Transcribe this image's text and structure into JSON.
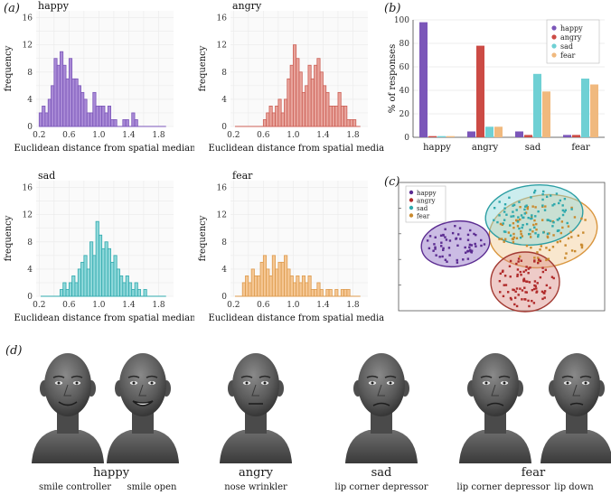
{
  "figure": {
    "panel_a_label": "(a)",
    "panel_b_label": "(b)",
    "panel_c_label": "(c)",
    "panel_d_label": "(d)"
  },
  "histograms": [
    {
      "id": "happy",
      "title": "happy",
      "color": "#a98ad6",
      "stroke": "#7b56b9",
      "ylabel": "frequency",
      "xlabel": "Euclidean distance from spatial median",
      "yticks": [
        "0",
        "4",
        "8",
        "12",
        "16"
      ],
      "xticks": [
        "0.2",
        "0.6",
        "1.0",
        "1.4",
        "1.8"
      ],
      "ymax": 17,
      "xmin": 0.16,
      "xmax": 2.0,
      "bin_start": 0.2,
      "bin_width": 0.04,
      "counts": [
        2,
        3,
        2,
        4,
        6,
        10,
        9,
        11,
        9,
        7,
        10,
        7,
        7,
        6,
        5,
        4,
        2,
        2,
        5,
        3,
        3,
        3,
        2,
        3,
        1,
        1,
        0,
        0,
        1,
        1,
        0,
        2,
        1,
        0,
        0,
        0,
        0
      ]
    },
    {
      "id": "angry",
      "title": "angry",
      "color": "#e8a49c",
      "stroke": "#cc5f55",
      "ylabel": "frequency",
      "xlabel": "Euclidean distance from spatial median",
      "yticks": [
        "0",
        "4",
        "8",
        "12",
        "16"
      ],
      "xticks": [
        "0.2",
        "0.6",
        "1.0",
        "1.4",
        "1.8"
      ],
      "ymax": 17,
      "xmin": 0.16,
      "xmax": 2.0,
      "bin_start": 0.6,
      "bin_width": 0.04,
      "counts": [
        1,
        2,
        3,
        2,
        3,
        4,
        2,
        4,
        7,
        9,
        12,
        10,
        8,
        5,
        6,
        9,
        7,
        9,
        10,
        8,
        6,
        5,
        3,
        3,
        3,
        5,
        3,
        3,
        1,
        1,
        1,
        0
      ]
    },
    {
      "id": "sad",
      "title": "sad",
      "color": "#8fd8da",
      "stroke": "#2fa9ad",
      "ylabel": "frequency",
      "xlabel": "Euclidean distance from spatial median",
      "yticks": [
        "0",
        "4",
        "8",
        "12",
        "16"
      ],
      "xticks": [
        "0.2",
        "0.6",
        "1.0",
        "1.4",
        "1.8"
      ],
      "ymax": 17,
      "xmin": 0.16,
      "xmax": 2.0,
      "bin_start": 0.48,
      "bin_width": 0.04,
      "counts": [
        1,
        2,
        1,
        2,
        3,
        2,
        4,
        5,
        6,
        4,
        8,
        6,
        11,
        9,
        7,
        8,
        7,
        5,
        6,
        4,
        3,
        2,
        3,
        2,
        1,
        2,
        1,
        0,
        1,
        0
      ]
    },
    {
      "id": "fear",
      "title": "fear",
      "color": "#f5c794",
      "stroke": "#dd9a4c",
      "ylabel": "frequency",
      "xlabel": "Euclidean distance from spatial median",
      "yticks": [
        "0",
        "4",
        "8",
        "12",
        "16"
      ],
      "xticks": [
        "0.2",
        "0.6",
        "1.0",
        "1.4",
        "1.8"
      ],
      "ymax": 17,
      "xmin": 0.16,
      "xmax": 2.0,
      "bin_start": 0.32,
      "bin_width": 0.04,
      "counts": [
        2,
        3,
        2,
        4,
        3,
        3,
        5,
        6,
        4,
        3,
        6,
        4,
        5,
        5,
        6,
        4,
        3,
        2,
        3,
        2,
        3,
        2,
        3,
        1,
        1,
        2,
        1,
        0,
        1,
        1,
        0,
        1,
        0,
        1,
        1,
        1
      ]
    }
  ],
  "chart_data": {
    "type": "bar",
    "title": "",
    "ylabel": "% of responses",
    "xlabel": "",
    "ylim": [
      0,
      100
    ],
    "yticks": [
      "0",
      "20",
      "40",
      "60",
      "80",
      "100"
    ],
    "categories": [
      "happy",
      "angry",
      "sad",
      "fear"
    ],
    "series": [
      {
        "name": "happy",
        "color": "#7b56b9",
        "values": [
          98,
          5,
          5,
          2
        ]
      },
      {
        "name": "angry",
        "color": "#cc4b45",
        "values": [
          1,
          78,
          2,
          2
        ]
      },
      {
        "name": "sad",
        "color": "#6fd0d4",
        "values": [
          1,
          9,
          54,
          50
        ]
      },
      {
        "name": "fear",
        "color": "#f0b97e",
        "values": [
          1,
          9,
          39,
          45
        ]
      }
    ]
  },
  "scatter": {
    "legend": [
      {
        "name": "happy",
        "color": "#5b2c91"
      },
      {
        "name": "angry",
        "color": "#b02a2a"
      },
      {
        "name": "sad",
        "color": "#2fa9ad"
      },
      {
        "name": "fear",
        "color": "#c98a2e"
      }
    ],
    "clusters": [
      {
        "name": "happy",
        "color": "#5b2c91",
        "fill": "#8b6bc3",
        "stroke": "#5b2c91"
      },
      {
        "name": "angry",
        "color": "#b02a2a",
        "fill": "#d98b85",
        "stroke": "#a33b33"
      },
      {
        "name": "sad",
        "color": "#2fa9ad",
        "fill": "#8fd8da",
        "stroke": "#2c9ea3"
      },
      {
        "name": "fear",
        "color": "#c98a2e",
        "fill": "#f1c993",
        "stroke": "#d9963f"
      }
    ]
  },
  "faces": {
    "groups": [
      {
        "emotion": "happy",
        "captions": [
          "smile controller",
          "smile open"
        ]
      },
      {
        "emotion": "angry",
        "captions": [
          "nose wrinkler"
        ]
      },
      {
        "emotion": "sad",
        "captions": [
          "lip corner depressor"
        ]
      },
      {
        "emotion": "fear",
        "captions": [
          "lip corner depressor",
          "lip down"
        ]
      }
    ]
  }
}
